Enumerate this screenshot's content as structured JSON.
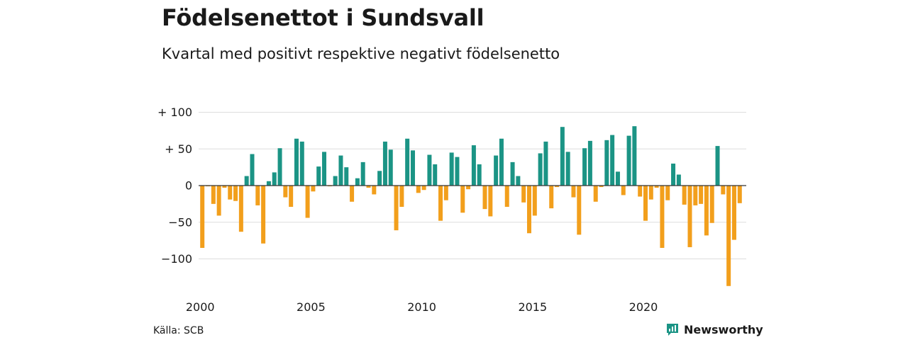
{
  "title": "Födelsenettot i Sundsvall",
  "subtitle": "Kvartal med positivt respektive negativt födelsenetto",
  "source": "Källa: SCB",
  "brand": {
    "name": "Newsworthy",
    "icon": "newsworthy-logo-icon"
  },
  "colors": {
    "positive": "#1b9485",
    "negative": "#f29f1c",
    "grid": "#dddddd",
    "zero": "#333333",
    "brand": "#1b9485"
  },
  "chart_data": {
    "type": "bar",
    "title": "Födelsenettot i Sundsvall",
    "subtitle": "Kvartal med positivt respektive negativt födelsenetto",
    "xlabel": "",
    "ylabel": "",
    "ylim": [
      -140,
      100
    ],
    "grid": true,
    "yticks": [
      {
        "value": 100,
        "label": "+ 100"
      },
      {
        "value": 50,
        "label": "+  50"
      },
      {
        "value": 0,
        "label": "0"
      },
      {
        "value": -50,
        "label": "−50"
      },
      {
        "value": -100,
        "label": "−100"
      }
    ],
    "xticks": [
      {
        "year": 2000,
        "label": "2000"
      },
      {
        "year": 2005,
        "label": "2005"
      },
      {
        "year": 2010,
        "label": "2010"
      },
      {
        "year": 2015,
        "label": "2015"
      },
      {
        "year": 2020,
        "label": "2020"
      }
    ],
    "x_start": {
      "year": 2000,
      "quarter": 1
    },
    "values": [
      -85,
      -1,
      -25,
      -41,
      -3,
      -19,
      -21,
      -63,
      13,
      43,
      -27,
      -79,
      6,
      18,
      51,
      -16,
      -29,
      64,
      60,
      -44,
      -8,
      26,
      46,
      -1,
      13,
      41,
      25,
      -22,
      10,
      32,
      -3,
      -12,
      20,
      60,
      49,
      -61,
      -29,
      64,
      48,
      -10,
      -6,
      42,
      29,
      -48,
      -20,
      45,
      39,
      -37,
      -5,
      55,
      29,
      -32,
      -42,
      41,
      64,
      -29,
      32,
      13,
      -23,
      -65,
      -41,
      44,
      60,
      -31,
      -2,
      80,
      46,
      -16,
      -67,
      51,
      61,
      -22,
      -2,
      62,
      69,
      19,
      -13,
      68,
      81,
      -15,
      -48,
      -19,
      -3,
      -85,
      -20,
      30,
      15,
      -26,
      -84,
      -27,
      -25,
      -68,
      -51,
      54,
      -12,
      -137,
      -74,
      -24
    ]
  }
}
